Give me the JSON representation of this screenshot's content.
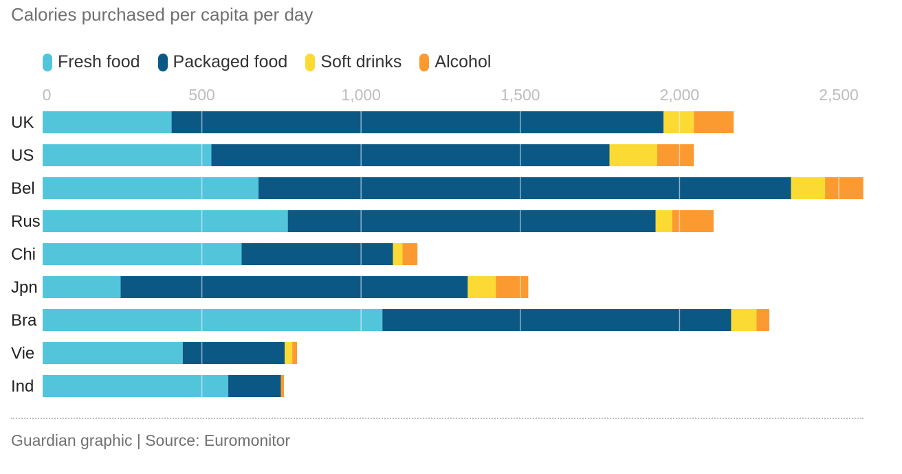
{
  "chart_data": {
    "type": "bar",
    "orientation": "horizontal",
    "stacked": true,
    "title": "Calories purchased per capita per day",
    "source": "Guardian graphic | Source: Euromonitor",
    "categories": [
      "UK",
      "US",
      "Bel",
      "Rus",
      "Chi",
      "Jpn",
      "Bra",
      "Vie",
      "Ind"
    ],
    "series": [
      {
        "name": "Fresh food",
        "color": "#52c5db",
        "values": [
          405,
          530,
          678,
          770,
          625,
          245,
          1067,
          440,
          583
        ]
      },
      {
        "name": "Packaged food",
        "color": "#0b5885",
        "values": [
          1545,
          1250,
          1672,
          1155,
          475,
          1090,
          1095,
          320,
          165
        ]
      },
      {
        "name": "Soft drinks",
        "color": "#fbdb33",
        "values": [
          95,
          150,
          107,
          52,
          30,
          88,
          80,
          24,
          0
        ]
      },
      {
        "name": "Alcohol",
        "color": "#fb9a30",
        "values": [
          125,
          115,
          120,
          130,
          47,
          102,
          40,
          15,
          10
        ]
      }
    ],
    "xlim": [
      0,
      2600
    ],
    "xticks": [
      0,
      500,
      1000,
      1500,
      2000,
      2500
    ],
    "xtick_labels": [
      "0",
      "500",
      "1,000",
      "1,500",
      "2,000",
      "2,500"
    ],
    "grid": true,
    "legend_position": "top-left"
  }
}
